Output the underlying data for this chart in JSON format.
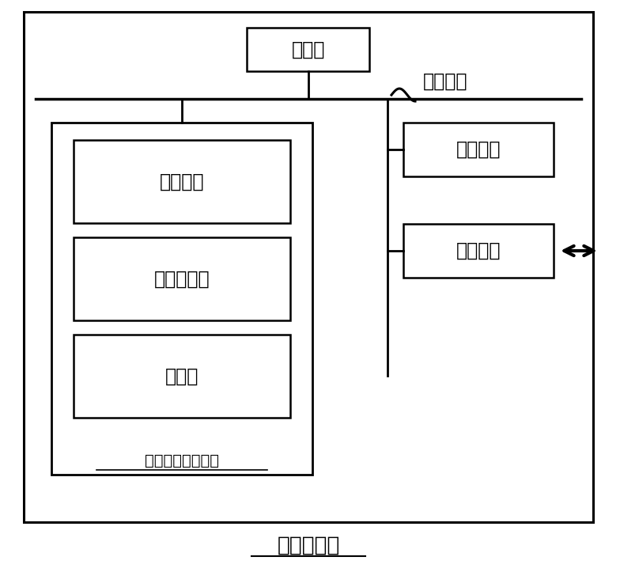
{
  "bg_color": "#ffffff",
  "border_color": "#000000",
  "text_color": "#000000",
  "title": "计算机设备",
  "processor_label": "处理器",
  "bus_label": "系统总线",
  "os_label": "操作系统",
  "program_label": "计算机程序",
  "db_label": "数据库",
  "storage_medium_label": "非易失性存储介质",
  "memory_label": "内存储器",
  "network_label": "网络接口",
  "font_size_main": 17,
  "font_size_title": 19,
  "font_size_small": 14
}
